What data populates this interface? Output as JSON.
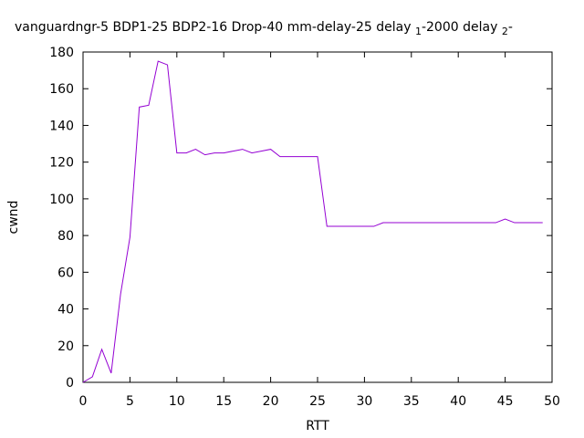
{
  "chart_data": {
    "type": "line",
    "title": {
      "main": "vanguardngr-5 BDP1-25 BDP2-16 Drop-40 mm-delay-25 delay",
      "sub1": "1",
      "mid": "-2000 delay",
      "sub2": "2",
      "tail": "-"
    },
    "xlabel": "RTT",
    "ylabel": "cwnd",
    "xlim": [
      0,
      50
    ],
    "ylim": [
      0,
      180
    ],
    "x_ticks": [
      "0",
      "5",
      "10",
      "15",
      "20",
      "25",
      "30",
      "35",
      "40",
      "45",
      "50"
    ],
    "y_ticks": [
      "0",
      "20",
      "40",
      "60",
      "80",
      "100",
      "120",
      "140",
      "160",
      "180"
    ],
    "grid": false,
    "legend": "none",
    "line_color": "#9400d3",
    "series": [
      {
        "x": [
          0,
          1,
          2,
          3,
          4,
          5,
          6,
          7,
          8,
          9,
          10,
          11,
          12,
          13,
          14,
          15,
          16,
          17,
          18,
          19,
          20,
          21,
          22,
          23,
          24,
          25,
          26,
          27,
          28,
          29,
          30,
          31,
          32,
          33,
          34,
          35,
          36,
          37,
          38,
          39,
          40,
          41,
          42,
          43,
          44,
          45,
          46,
          47,
          48,
          49
        ],
        "y": [
          0,
          3,
          18,
          5,
          48,
          79,
          150,
          151,
          175,
          173,
          125,
          125,
          127,
          124,
          125,
          125,
          126,
          127,
          125,
          126,
          127,
          123,
          123,
          123,
          123,
          123,
          85,
          85,
          85,
          85,
          85,
          85,
          87,
          87,
          87,
          87,
          87,
          87,
          87,
          87,
          87,
          87,
          87,
          87,
          87,
          89,
          87,
          87,
          87,
          87
        ]
      }
    ]
  }
}
